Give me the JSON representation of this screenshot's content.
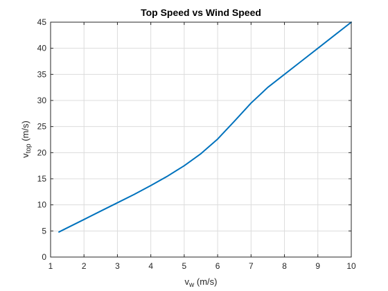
{
  "chart_data": {
    "type": "line",
    "title": "Top Speed vs Wind Speed",
    "xlabel": {
      "main": "v",
      "sub": "w",
      "unit": " (m/s)"
    },
    "ylabel": {
      "main": "v",
      "sub": "top",
      "unit": " (m/s)"
    },
    "xlim": [
      1,
      10
    ],
    "ylim": [
      0,
      45
    ],
    "xticks": [
      1,
      2,
      3,
      4,
      5,
      6,
      7,
      8,
      9,
      10
    ],
    "yticks": [
      0,
      5,
      10,
      15,
      20,
      25,
      30,
      35,
      40,
      45
    ],
    "grid": true,
    "series": [
      {
        "color": "#0072BD",
        "x": [
          1.25,
          1.5,
          2,
          2.5,
          3,
          3.5,
          4,
          4.5,
          5,
          5.5,
          6,
          6.5,
          7,
          7.5,
          8,
          8.5,
          9,
          9.5,
          10
        ],
        "y": [
          4.8,
          5.6,
          7.2,
          8.8,
          10.4,
          12.0,
          13.7,
          15.5,
          17.5,
          19.8,
          22.6,
          26.0,
          29.5,
          32.5,
          35.0,
          37.5,
          40.0,
          42.5,
          45.0
        ]
      }
    ]
  }
}
